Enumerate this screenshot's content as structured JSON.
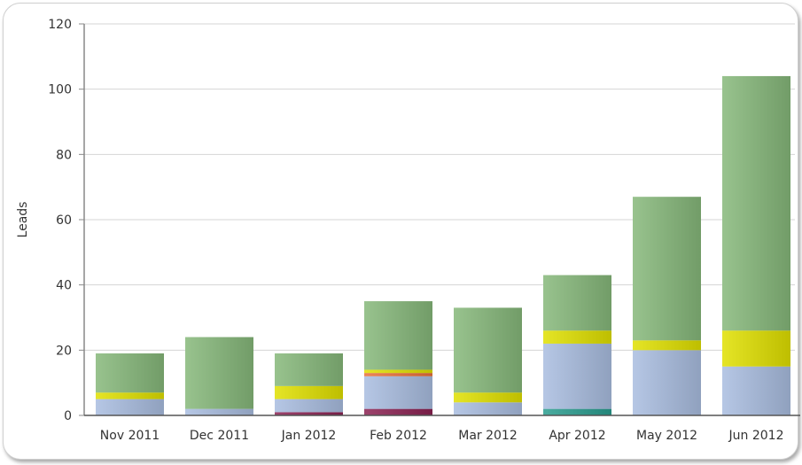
{
  "chart_data": {
    "type": "bar",
    "stacked": true,
    "title": "",
    "xlabel": "",
    "ylabel": "Leads",
    "ylim": [
      0,
      120
    ],
    "yticks": [
      0,
      20,
      40,
      60,
      80,
      100,
      120
    ],
    "grid": true,
    "legend": "none",
    "categories": [
      "Nov 2011",
      "Dec 2011",
      "Jan 2012",
      "Feb 2012",
      "Mar 2012",
      "Apr 2012",
      "May 2012",
      "Jun 2012"
    ],
    "series": [
      {
        "color": "#8b2252",
        "values": [
          0,
          0,
          1,
          2,
          0,
          0,
          0,
          0
        ]
      },
      {
        "color": "#2a9d8f",
        "values": [
          0,
          0,
          0,
          0,
          0,
          2,
          0,
          0
        ]
      },
      {
        "color": "#a9bde0",
        "values": [
          5,
          2,
          4,
          10,
          4,
          20,
          20,
          15
        ]
      },
      {
        "color": "#e8703a",
        "values": [
          0,
          0,
          0,
          1,
          0,
          0,
          0,
          0
        ]
      },
      {
        "color": "#e0e000",
        "values": [
          2,
          0,
          4,
          1,
          3,
          4,
          3,
          11
        ]
      },
      {
        "color": "#86b87a",
        "values": [
          12,
          22,
          10,
          21,
          26,
          17,
          44,
          78
        ]
      }
    ]
  }
}
